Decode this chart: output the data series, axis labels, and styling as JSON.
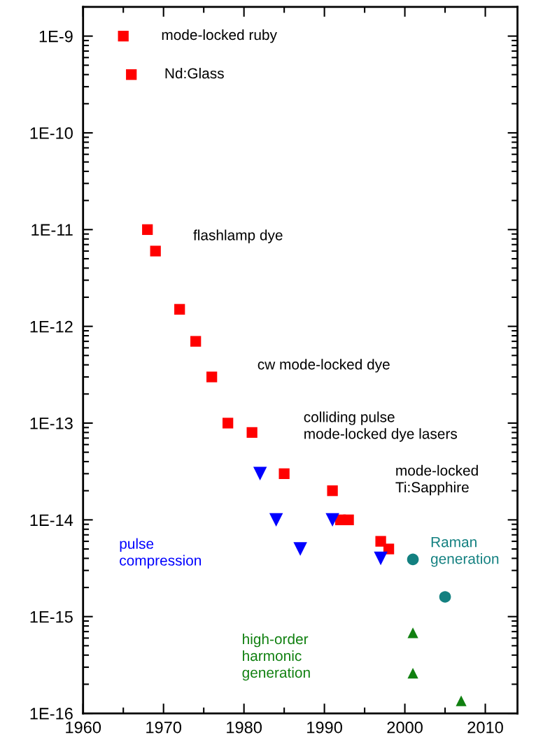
{
  "chart_data": {
    "type": "scatter",
    "log": "y",
    "xlim": [
      1960,
      2014
    ],
    "ylim": [
      1e-16,
      2e-09
    ],
    "xticks": [
      1960,
      1970,
      1980,
      1990,
      2000,
      2010
    ],
    "yticks": [
      {
        "value": 1e-16,
        "label": "1E-16"
      },
      {
        "value": 1e-15,
        "label": "1E-15"
      },
      {
        "value": 1e-14,
        "label": "1E-14"
      },
      {
        "value": 1e-13,
        "label": "1E-13"
      },
      {
        "value": 1e-12,
        "label": "1E-12"
      },
      {
        "value": 1e-11,
        "label": "1E-11"
      },
      {
        "value": 1e-10,
        "label": "1E-10"
      },
      {
        "value": 1e-09,
        "label": "1E-9"
      }
    ],
    "series": [
      {
        "name": "mode-locked ruby",
        "color": "#ff0000",
        "marker": "square",
        "x": [
          1965
        ],
        "values": [
          1e-09
        ]
      },
      {
        "name": "Nd:Glass",
        "color": "#ff0000",
        "marker": "square",
        "x": [
          1966
        ],
        "values": [
          4e-10
        ]
      },
      {
        "name": "flashlamp dye",
        "color": "#ff0000",
        "marker": "square",
        "x": [
          1968,
          1969
        ],
        "values": [
          1e-11,
          6e-12
        ]
      },
      {
        "name": "cw mode-locked dye",
        "color": "#ff0000",
        "marker": "square",
        "x": [
          1972,
          1974,
          1976,
          1978
        ],
        "values": [
          1.5e-12,
          7e-13,
          3e-13,
          1e-13
        ]
      },
      {
        "name": "colliding pulse\nmode-locked dye lasers",
        "color": "#ff0000",
        "marker": "square",
        "x": [
          1981,
          1985,
          1991,
          1992,
          1993
        ],
        "values": [
          8e-14,
          3e-14,
          2e-14,
          1e-14,
          1e-14
        ]
      },
      {
        "name": "mode-locked\nTi:Sapphire",
        "color": "#ff0000",
        "marker": "square",
        "x": [
          1997,
          1998
        ],
        "values": [
          6e-15,
          5e-15
        ]
      },
      {
        "name": "pulse\ncompression",
        "color": "#0000ff",
        "marker": "triangle-down",
        "x": [
          1982,
          1984,
          1987,
          1991,
          1997
        ],
        "values": [
          3e-14,
          1e-14,
          5e-15,
          1e-14,
          4e-15
        ]
      },
      {
        "name": "Raman\ngeneration",
        "color": "#138080",
        "marker": "circle",
        "x": [
          2001,
          2005
        ],
        "values": [
          3.9e-15,
          1.6e-15
        ]
      },
      {
        "name": "high-order\nharmonic\ngeneration",
        "color": "#108010",
        "marker": "triangle",
        "x": [
          2001,
          2001,
          2007
        ],
        "values": [
          6.8e-16,
          2.6e-16,
          1.35e-16
        ]
      }
    ]
  }
}
